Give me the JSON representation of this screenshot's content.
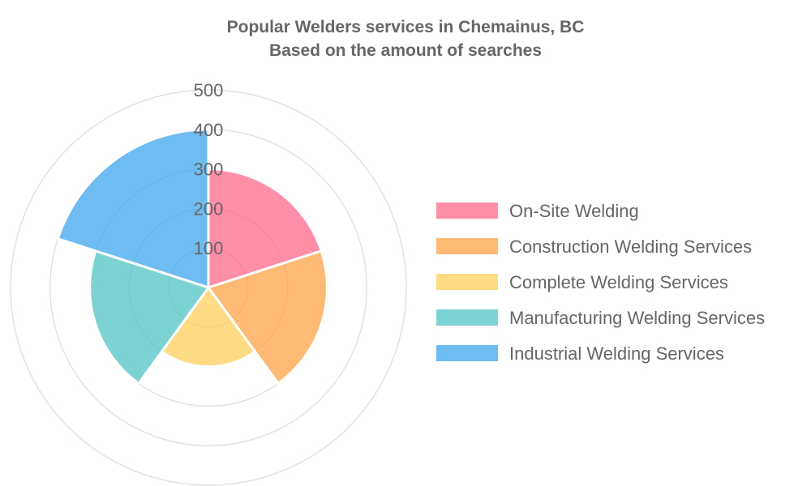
{
  "chart_data": {
    "type": "polar_area",
    "title": "Popular Welders services in Chemainus, BC",
    "subtitle": "Based on the amount of searches",
    "r_range": [
      0,
      500
    ],
    "r_ticks": [
      "100",
      "200",
      "300",
      "400",
      "500"
    ],
    "grid": true,
    "legend_position": "right",
    "categories": [
      "On-Site Welding",
      "Construction Welding Services",
      "Complete Welding Services",
      "Manufacturing Welding Services",
      "Industrial Welding Services"
    ],
    "values": [
      300,
      300,
      200,
      300,
      400
    ],
    "colors": [
      "#ff6384",
      "#ff9f40",
      "#ffcd56",
      "#4bc0c0",
      "#36a2eb"
    ]
  }
}
